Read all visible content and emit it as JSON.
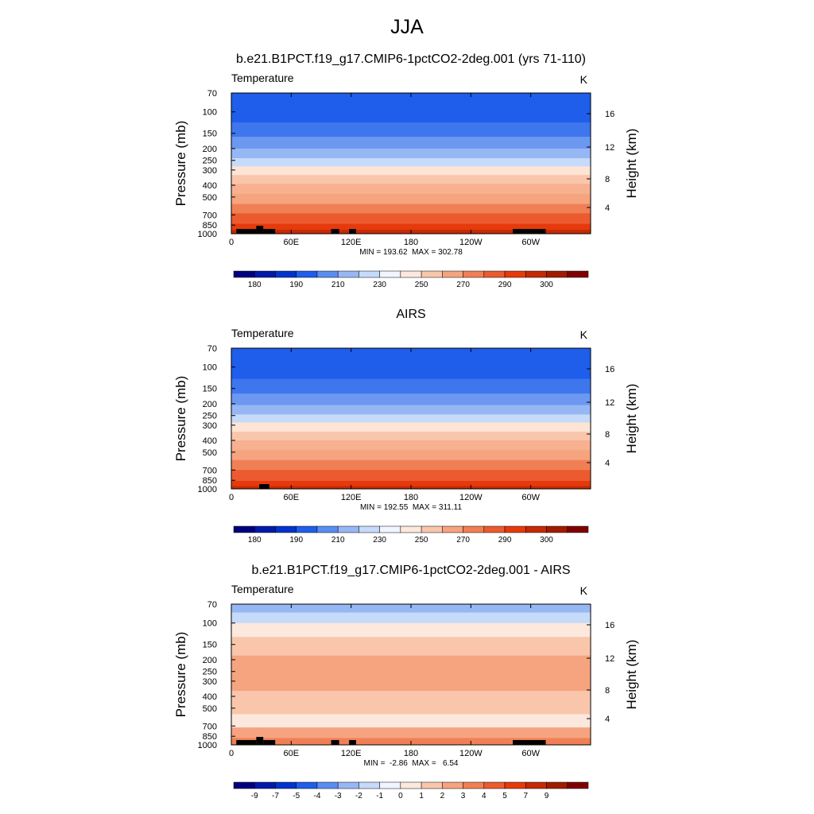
{
  "title": "JJA",
  "chart_data": [
    {
      "type": "heatmap",
      "title": "b.e21.B1PCT.f19_g17.CMIP6-1pctCO2-2deg.001 (yrs 71-110)",
      "left_title": "Temperature",
      "units": "K",
      "ylabel": "Pressure (mb)",
      "ylabel_right": "Height (km)",
      "x_ticks": [
        "0",
        "60E",
        "120E",
        "180",
        "120W",
        "60W"
      ],
      "x_tick_values": [
        0,
        60,
        120,
        180,
        240,
        300
      ],
      "xlim": [
        0,
        360
      ],
      "y_ticks": [
        "70",
        "100",
        "150",
        "200",
        "250",
        "300",
        "400",
        "500",
        "700",
        "850",
        "1000"
      ],
      "y_tick_values": [
        70,
        100,
        150,
        200,
        250,
        300,
        400,
        500,
        700,
        850,
        1000
      ],
      "ylim": [
        1000,
        70
      ],
      "y_scale": "log",
      "right_ticks": [
        "16",
        "12",
        "8",
        "4"
      ],
      "stats": "MIN = 193.62  MAX = 302.78",
      "colorbar_labels": [
        "180",
        "190",
        "210",
        "230",
        "250",
        "270",
        "290",
        "300"
      ],
      "colorbar_colors": [
        "#00007f",
        "#0019a8",
        "#0033cc",
        "#1f5eeb",
        "#5a8df0",
        "#97b7f4",
        "#c6daf9",
        "#f0f5fe",
        "#fce8dc",
        "#f9c6ac",
        "#f5a47f",
        "#f17f55",
        "#ec5b2f",
        "#e63a0c",
        "#c42a05",
        "#a01c00",
        "#800000"
      ],
      "bands": [
        {
          "p": [
            70,
            122
          ],
          "color": "#1f5eeb"
        },
        {
          "p": [
            122,
            160
          ],
          "color": "#3e76ee"
        },
        {
          "p": [
            160,
            200
          ],
          "color": "#6c98f1"
        },
        {
          "p": [
            200,
            240
          ],
          "color": "#97b7f4"
        },
        {
          "p": [
            240,
            280
          ],
          "color": "#c6daf9"
        },
        {
          "p": [
            280,
            330
          ],
          "color": "#fde4d4"
        },
        {
          "p": [
            330,
            390
          ],
          "color": "#f9c6ac"
        },
        {
          "p": [
            390,
            470
          ],
          "color": "#f7b190"
        },
        {
          "p": [
            470,
            570
          ],
          "color": "#f5a47f"
        },
        {
          "p": [
            570,
            680
          ],
          "color": "#f17f55"
        },
        {
          "p": [
            680,
            830
          ],
          "color": "#ec5b2f"
        },
        {
          "p": [
            830,
            930
          ],
          "color": "#e63a0c"
        },
        {
          "p": [
            930,
            1000
          ],
          "color": "#c42a05"
        }
      ],
      "topography": [
        [
          5,
          25
        ],
        [
          25,
          32
        ],
        [
          32,
          37
        ],
        [
          37,
          44
        ],
        [
          100,
          108
        ],
        [
          118,
          125
        ],
        [
          282,
          315
        ]
      ]
    },
    {
      "type": "heatmap",
      "title": "AIRS",
      "left_title": "Temperature",
      "units": "K",
      "ylabel": "Pressure (mb)",
      "ylabel_right": "Height (km)",
      "x_ticks": [
        "0",
        "60E",
        "120E",
        "180",
        "120W",
        "60W"
      ],
      "x_tick_values": [
        0,
        60,
        120,
        180,
        240,
        300
      ],
      "xlim": [
        0,
        360
      ],
      "y_ticks": [
        "70",
        "100",
        "150",
        "200",
        "250",
        "300",
        "400",
        "500",
        "700",
        "850",
        "1000"
      ],
      "y_tick_values": [
        70,
        100,
        150,
        200,
        250,
        300,
        400,
        500,
        700,
        850,
        1000
      ],
      "ylim": [
        1000,
        70
      ],
      "y_scale": "log",
      "right_ticks": [
        "16",
        "12",
        "8",
        "4"
      ],
      "stats": "MIN = 192.55  MAX = 311.11",
      "colorbar_labels": [
        "180",
        "190",
        "210",
        "230",
        "250",
        "270",
        "290",
        "300"
      ],
      "colorbar_colors": [
        "#00007f",
        "#0019a8",
        "#0033cc",
        "#1f5eeb",
        "#5a8df0",
        "#97b7f4",
        "#c6daf9",
        "#f0f5fe",
        "#fce8dc",
        "#f9c6ac",
        "#f5a47f",
        "#f17f55",
        "#ec5b2f",
        "#e63a0c",
        "#c42a05",
        "#a01c00",
        "#800000"
      ],
      "bands": [
        {
          "p": [
            70,
            125
          ],
          "color": "#1f5eeb"
        },
        {
          "p": [
            125,
            165
          ],
          "color": "#3e76ee"
        },
        {
          "p": [
            165,
            205
          ],
          "color": "#6c98f1"
        },
        {
          "p": [
            205,
            245
          ],
          "color": "#97b7f4"
        },
        {
          "p": [
            245,
            285
          ],
          "color": "#c6daf9"
        },
        {
          "p": [
            285,
            340
          ],
          "color": "#fde4d4"
        },
        {
          "p": [
            340,
            400
          ],
          "color": "#f9c6ac"
        },
        {
          "p": [
            400,
            480
          ],
          "color": "#f7b190"
        },
        {
          "p": [
            480,
            580
          ],
          "color": "#f5a47f"
        },
        {
          "p": [
            580,
            700
          ],
          "color": "#f17f55"
        },
        {
          "p": [
            700,
            860
          ],
          "color": "#ec5b2f"
        },
        {
          "p": [
            860,
            950
          ],
          "color": "#e63a0c"
        },
        {
          "p": [
            950,
            1000
          ],
          "color": "#c42a05"
        }
      ],
      "topography": [
        [
          28,
          38
        ]
      ]
    },
    {
      "type": "heatmap",
      "title": "b.e21.B1PCT.f19_g17.CMIP6-1pctCO2-2deg.001 - AIRS",
      "left_title": "Temperature",
      "units": "K",
      "ylabel": "Pressure (mb)",
      "ylabel_right": "Height (km)",
      "x_ticks": [
        "0",
        "60E",
        "120E",
        "180",
        "120W",
        "60W"
      ],
      "x_tick_values": [
        0,
        60,
        120,
        180,
        240,
        300
      ],
      "xlim": [
        0,
        360
      ],
      "y_ticks": [
        "70",
        "100",
        "150",
        "200",
        "250",
        "300",
        "400",
        "500",
        "700",
        "850",
        "1000"
      ],
      "y_tick_values": [
        70,
        100,
        150,
        200,
        250,
        300,
        400,
        500,
        700,
        850,
        1000
      ],
      "ylim": [
        1000,
        70
      ],
      "y_scale": "log",
      "right_ticks": [
        "16",
        "12",
        "8",
        "4"
      ],
      "stats": "MIN =  -2.86  MAX =   6.54",
      "colorbar_labels": [
        "-9",
        "-7",
        "-5",
        "-4",
        "-3",
        "-2",
        "-1",
        "0",
        "1",
        "2",
        "3",
        "4",
        "5",
        "7",
        "9"
      ],
      "colorbar_colors": [
        "#00007f",
        "#0019a8",
        "#0033cc",
        "#1f5eeb",
        "#5a8df0",
        "#97b7f4",
        "#c6daf9",
        "#f0f5fe",
        "#fce8dc",
        "#f9c6ac",
        "#f5a47f",
        "#f17f55",
        "#ec5b2f",
        "#e63a0c",
        "#c42a05",
        "#a01c00",
        "#800000"
      ],
      "bands": [
        {
          "p": [
            70,
            82
          ],
          "color": "#97b7f4"
        },
        {
          "p": [
            82,
            100
          ],
          "color": "#c6daf9"
        },
        {
          "p": [
            100,
            130
          ],
          "color": "#fce8dc"
        },
        {
          "p": [
            130,
            185
          ],
          "color": "#f9c6ac"
        },
        {
          "p": [
            185,
            360
          ],
          "color": "#f5a47f"
        },
        {
          "p": [
            360,
            560
          ],
          "color": "#f9c6ac"
        },
        {
          "p": [
            560,
            720
          ],
          "color": "#fce8dc"
        },
        {
          "p": [
            720,
            880
          ],
          "color": "#f5a47f"
        },
        {
          "p": [
            880,
            1000
          ],
          "color": "#f17f55"
        }
      ],
      "topography": [
        [
          5,
          25
        ],
        [
          25,
          32
        ],
        [
          32,
          37
        ],
        [
          37,
          44
        ],
        [
          100,
          108
        ],
        [
          118,
          125
        ],
        [
          282,
          315
        ]
      ]
    }
  ]
}
